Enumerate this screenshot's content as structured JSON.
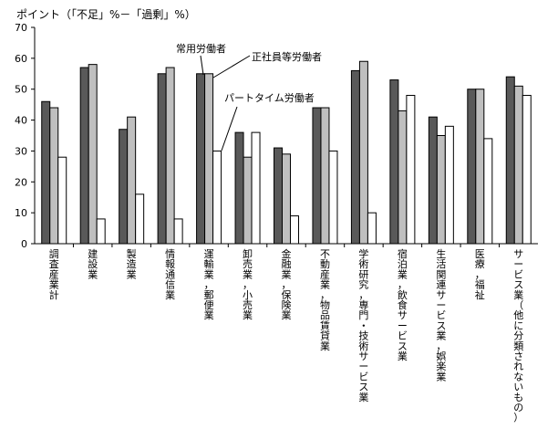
{
  "chart_data": {
    "type": "bar",
    "ylabel": "ポイント（「不足」%－「過剰」%）",
    "ylim": [
      0,
      70
    ],
    "yticks": [
      0,
      10,
      20,
      30,
      40,
      50,
      60,
      70
    ],
    "grid": false,
    "categories": [
      "調査産業計",
      "建設業",
      "製造業",
      "情報通信業",
      "運輸業，郵便業",
      "卸売業，小売業",
      "金融業，保険業",
      "不動産業，物品賃貸業",
      "学術研究，専門・技術サービス業",
      "宿泊業，飲食サービス業",
      "生活関連サービス業，娯楽業",
      "医療，福祉",
      "サービス業（他に分類されないもの）"
    ],
    "series": [
      {
        "name": "常用労働者",
        "color": "#595959",
        "values": [
          46,
          57,
          37,
          55,
          55,
          36,
          31,
          44,
          56,
          53,
          41,
          50,
          54
        ]
      },
      {
        "name": "正社員等労働者",
        "color": "#bfbfbf",
        "values": [
          44,
          58,
          41,
          57,
          55,
          28,
          29,
          44,
          59,
          43,
          35,
          50,
          51
        ]
      },
      {
        "name": "パートタイム労働者",
        "color": "#ffffff",
        "values": [
          28,
          8,
          16,
          8,
          30,
          36,
          9,
          30,
          10,
          48,
          38,
          34,
          48
        ]
      }
    ]
  }
}
